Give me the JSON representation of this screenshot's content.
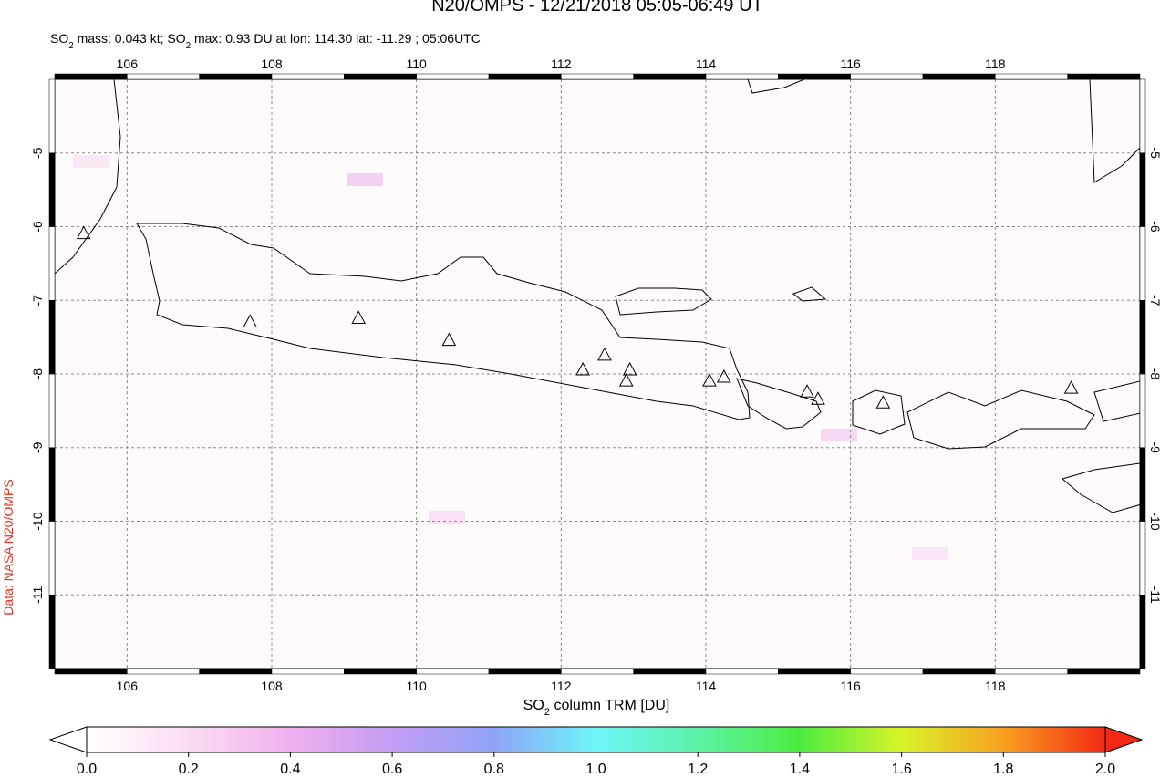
{
  "chart_data": {
    "type": "map",
    "title": "N20/OMPS - 12/21/2018 05:05-06:49 UT",
    "subtitle": [
      "SO",
      "2",
      " mass: 0.043 kt; SO",
      "2",
      " max: 0.93 DU at lon: 114.30 lat: -11.29 ; 05:06UTC"
    ],
    "xlim": [
      105,
      120
    ],
    "ylim": [
      -4,
      -12
    ],
    "xticks": [
      106,
      108,
      110,
      112,
      114,
      116,
      118
    ],
    "yticks": [
      -5,
      -6,
      -7,
      -8,
      -9,
      -10,
      -11
    ],
    "grid": true,
    "volcanoes": {
      "lon": [
        105.4,
        107.7,
        109.2,
        110.45,
        112.3,
        112.6,
        112.95,
        112.9,
        114.05,
        114.25,
        115.4,
        115.55,
        116.45,
        119.05
      ],
      "lat": [
        -6.1,
        -7.3,
        -7.25,
        -7.55,
        -7.95,
        -7.75,
        -7.95,
        -8.1,
        -8.1,
        -8.05,
        -8.25,
        -8.35,
        -8.4,
        -8.2
      ]
    },
    "colorbar": {
      "label": [
        "SO",
        "2",
        " column TRM [DU]"
      ],
      "lim": [
        0,
        2
      ],
      "ticks": [
        {
          "value": 0,
          "label": "0.0"
        },
        {
          "value": 0.2,
          "label": "0.2"
        },
        {
          "value": 0.4,
          "label": "0.4"
        },
        {
          "value": 0.6,
          "label": "0.6"
        },
        {
          "value": 0.8,
          "label": "0.8"
        },
        {
          "value": 1,
          "label": "1.0"
        },
        {
          "value": 1.2,
          "label": "1.2"
        },
        {
          "value": 1.4,
          "label": "1.4"
        },
        {
          "value": 1.6,
          "label": "1.6"
        },
        {
          "value": 1.8,
          "label": "1.8"
        },
        {
          "value": 2,
          "label": "2.0"
        }
      ]
    },
    "credit": "Data: NASA N20/OMPS"
  }
}
